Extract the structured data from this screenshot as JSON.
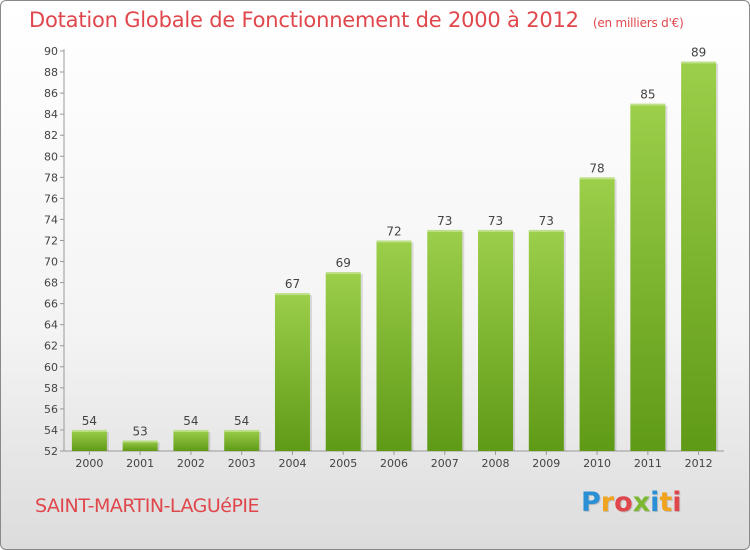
{
  "header": {
    "title": "Dotation Globale de Fonctionnement de 2000 à 2012",
    "unit_note": "(en milliers d'€)"
  },
  "footer": {
    "commune": "SAINT-MARTIN-LAGUéPIE",
    "logo_text": "Proxiti",
    "logo_letters": [
      {
        "ch": "P",
        "color": "#2b8fd6"
      },
      {
        "ch": "r",
        "color": "#f0a31f"
      },
      {
        "ch": "o",
        "color": "#e0474c"
      },
      {
        "ch": "x",
        "color": "#7db833"
      },
      {
        "ch": "i",
        "color": "#2b8fd6"
      },
      {
        "ch": "t",
        "color": "#f0a31f"
      },
      {
        "ch": "i",
        "color": "#e0474c"
      }
    ]
  },
  "colors": {
    "accent": "#e0474c",
    "bar_top": "#9ccf4a",
    "bar_bottom": "#5f9a16"
  },
  "chart_data": {
    "type": "bar",
    "title": "Dotation Globale de Fonctionnement de 2000 à 2012",
    "subtitle": "(en milliers d'€)",
    "categories": [
      "2000",
      "2001",
      "2002",
      "2003",
      "2004",
      "2005",
      "2006",
      "2007",
      "2008",
      "2009",
      "2010",
      "2011",
      "2012"
    ],
    "values": [
      54,
      53,
      54,
      54,
      67,
      69,
      72,
      73,
      73,
      73,
      78,
      85,
      89
    ],
    "xlabel": "",
    "ylabel": "",
    "ylim": [
      52,
      90
    ],
    "ytick_step": 2,
    "grid": false,
    "data_labels": true
  }
}
